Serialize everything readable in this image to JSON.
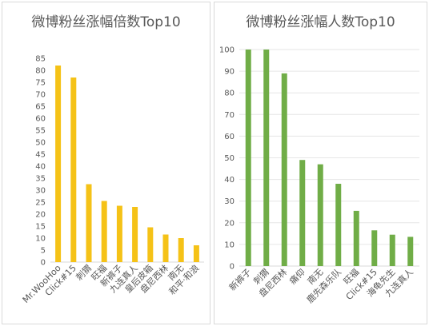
{
  "chart_data": [
    {
      "type": "bar",
      "title": "微博粉丝涨幅倍数Top10",
      "categories": [
        "Mr.WooHoo",
        "Click#15",
        "刺猬",
        "旺福",
        "新裤子",
        "九连真人",
        "皇后皮箱",
        "盘尼西林",
        "南无",
        "和平·和浪"
      ],
      "values": [
        82,
        77,
        32.5,
        25.5,
        23.5,
        23,
        14.5,
        11.5,
        10,
        7
      ],
      "ylim": [
        0,
        85
      ],
      "yticks": [
        0,
        5,
        10,
        15,
        20,
        25,
        30,
        35,
        40,
        45,
        50,
        55,
        60,
        65,
        70,
        75,
        80,
        85
      ],
      "color": "#f5c217",
      "grid": false,
      "xlabel": "",
      "ylabel": ""
    },
    {
      "type": "bar",
      "title": "微博粉丝涨幅人数Top10",
      "categories": [
        "新裤子",
        "刺猬",
        "盘尼西林",
        "痛仰",
        "南无",
        "鹿先森乐队",
        "旺福",
        "Click#15",
        "海龟先生",
        "九连真人"
      ],
      "values": [
        100,
        100,
        89,
        49,
        47,
        38,
        25.5,
        16.5,
        14.5,
        13.5
      ],
      "ylim": [
        0,
        100
      ],
      "yticks": [
        0,
        10,
        20,
        30,
        40,
        50,
        60,
        70,
        80,
        90,
        100
      ],
      "color": "#70ad47",
      "grid": true,
      "xlabel": "",
      "ylabel": ""
    }
  ]
}
